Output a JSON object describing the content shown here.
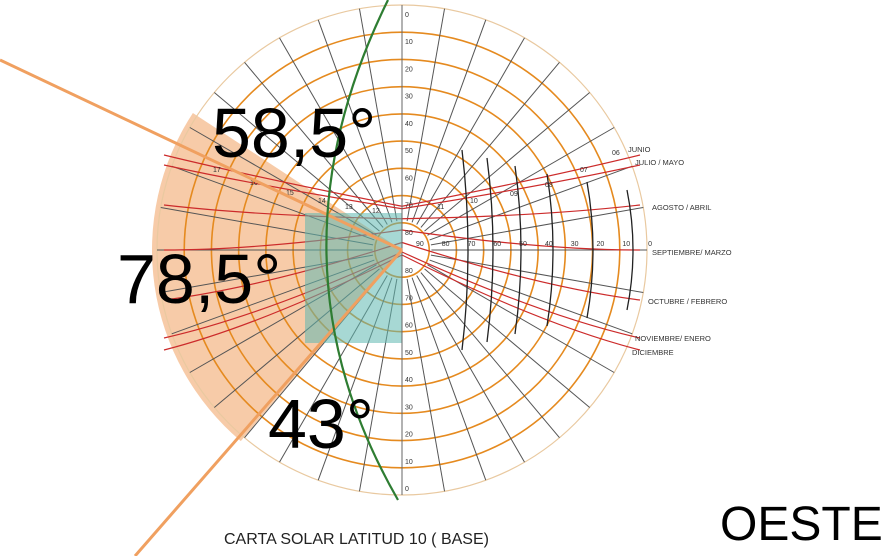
{
  "title": "CARTA SOLAR LATITUD 10 ( BASE)",
  "orientation_label": "OESTE",
  "angle_labels": {
    "top": "58,5°",
    "middle": "78,5°",
    "bottom": "43°"
  },
  "altitude_ticks": [
    "0",
    "10",
    "20",
    "30",
    "40",
    "50",
    "60",
    "70",
    "80"
  ],
  "azimuth_ticks_right": [
    "90",
    "80",
    "70",
    "60",
    "50",
    "40",
    "30",
    "20",
    "10",
    "0"
  ],
  "hour_labels_right": [
    "06",
    "07",
    "08",
    "09",
    "10",
    "11"
  ],
  "hour_labels_left": [
    "17",
    "16",
    "15",
    "14",
    "13",
    "12"
  ],
  "month_labels": [
    "JUNIO",
    "JULIO / MAYO",
    "AGOSTO / ABRIL",
    "SEPTIEMBRE/ MARZO",
    "OCTUBRE / FEBRERO",
    "NOVIEMBRE/ ENERO",
    "DICIEMBRE"
  ],
  "colors": {
    "altitude_circles": "#e58a1f",
    "azimuth_lines": "#555555",
    "day_paths": "#cc2b2b",
    "shade_sector": "#f0a060",
    "shade_box": "#5fb8b0",
    "meridian": "#2e7d32",
    "limit_rays": "#f0a060"
  }
}
